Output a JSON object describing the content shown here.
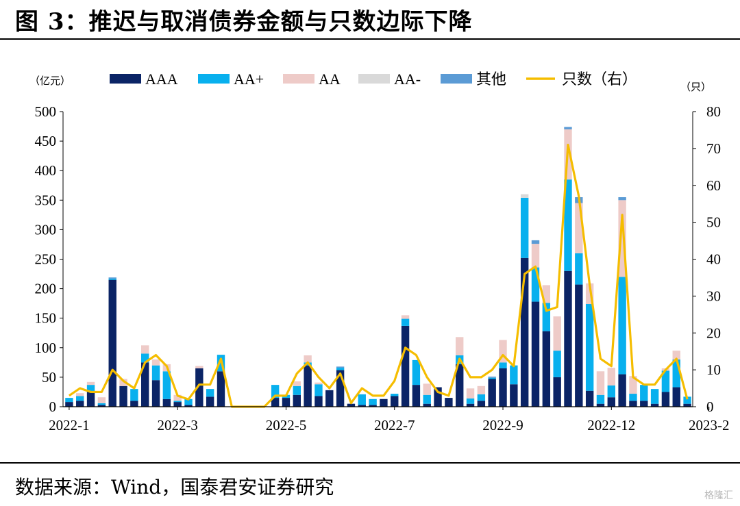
{
  "figure": {
    "title": "图 3：推迟与取消债券金额与只数边际下降",
    "source": "数据来源：Wind，国泰君安证券研究",
    "watermark": "格隆汇"
  },
  "chart_data": {
    "type": "bar",
    "stacked": true,
    "left_unit": "（亿元）",
    "right_unit": "（只）",
    "ylim": [
      0,
      500
    ],
    "yticks": [
      0,
      50,
      100,
      150,
      200,
      250,
      300,
      350,
      400,
      450,
      500
    ],
    "y2lim": [
      0,
      80
    ],
    "y2ticks": [
      0,
      10,
      20,
      30,
      40,
      50,
      60,
      70,
      80
    ],
    "xtick_labels": [
      {
        "index": 0,
        "label": "2022-1"
      },
      {
        "index": 10,
        "label": "2022-3"
      },
      {
        "index": 20,
        "label": "2022-5"
      },
      {
        "index": 30,
        "label": "2022-7"
      },
      {
        "index": 40,
        "label": "2022-9"
      },
      {
        "index": 50,
        "label": "2022-12"
      },
      {
        "index": 59,
        "label": "2023-2"
      }
    ],
    "legend_position": "top",
    "colors": {
      "AAA": "#0b2466",
      "AA+": "#08b0ee",
      "AA": "#eecbc8",
      "AA-": "#d9d9d9",
      "其他": "#5b9bd5",
      "只数（右）": "#f5bd00"
    },
    "series": [
      {
        "name": "AAA",
        "values": [
          8,
          10,
          25,
          3,
          215,
          35,
          10,
          75,
          45,
          13,
          8,
          3,
          65,
          17,
          60,
          0,
          0,
          0,
          0,
          15,
          15,
          20,
          70,
          18,
          28,
          62,
          5,
          3,
          3,
          13,
          18,
          137,
          37,
          5,
          33,
          15,
          72,
          5,
          10,
          47,
          65,
          38,
          252,
          178,
          128,
          50,
          230,
          207,
          27,
          5,
          16,
          55,
          10,
          10,
          5,
          25,
          33,
          5
        ]
      },
      {
        "name": "AA+",
        "values": [
          7,
          8,
          12,
          3,
          2,
          0,
          20,
          15,
          25,
          47,
          2,
          10,
          0,
          13,
          28,
          0,
          0,
          0,
          0,
          22,
          5,
          15,
          5,
          20,
          0,
          4,
          0,
          18,
          10,
          0,
          4,
          12,
          42,
          15,
          0,
          0,
          15,
          9,
          11,
          2,
          10,
          32,
          102,
          58,
          48,
          45,
          155,
          53,
          147,
          15,
          20,
          165,
          12,
          27,
          25,
          36,
          47,
          12
        ]
      },
      {
        "name": "AA",
        "values": [
          0,
          5,
          5,
          10,
          0,
          12,
          0,
          14,
          10,
          12,
          10,
          0,
          4,
          0,
          0,
          0,
          0,
          0,
          0,
          0,
          0,
          8,
          12,
          3,
          0,
          0,
          0,
          0,
          0,
          0,
          0,
          6,
          0,
          19,
          0,
          0,
          31,
          17,
          14,
          0,
          38,
          0,
          0,
          40,
          30,
          58,
          85,
          85,
          35,
          40,
          30,
          130,
          30,
          0,
          0,
          4,
          15,
          0
        ]
      },
      {
        "name": "AA-",
        "values": [
          0,
          0,
          0,
          0,
          0,
          0,
          0,
          0,
          0,
          0,
          0,
          0,
          0,
          0,
          0,
          0,
          0,
          0,
          0,
          0,
          0,
          0,
          0,
          0,
          0,
          0,
          0,
          0,
          0,
          0,
          0,
          0,
          0,
          0,
          0,
          0,
          0,
          0,
          0,
          0,
          0,
          0,
          6,
          0,
          0,
          0,
          0,
          0,
          0,
          0,
          0,
          0,
          0,
          0,
          0,
          0,
          0,
          0
        ]
      },
      {
        "name": "其他",
        "values": [
          0,
          0,
          0,
          0,
          2,
          0,
          0,
          0,
          0,
          0,
          0,
          0,
          0,
          0,
          0,
          0,
          0,
          0,
          0,
          0,
          0,
          0,
          0,
          0,
          0,
          2,
          0,
          0,
          0,
          0,
          0,
          0,
          0,
          0,
          0,
          0,
          0,
          0,
          0,
          2,
          0,
          0,
          0,
          6,
          0,
          0,
          4,
          10,
          0,
          0,
          0,
          5,
          0,
          0,
          0,
          0,
          0,
          0
        ]
      },
      {
        "name": "只数（右）",
        "type": "line",
        "axis": "right",
        "values": [
          3,
          5,
          4,
          4,
          10,
          7,
          5,
          12,
          14,
          11,
          3,
          2,
          6,
          6,
          13,
          0,
          0,
          0,
          0,
          3,
          3,
          9,
          12,
          8,
          5,
          9,
          1,
          5,
          3,
          3,
          7,
          16,
          14,
          8,
          4,
          3,
          13,
          8,
          8,
          10,
          14,
          11,
          36,
          38,
          26,
          27,
          71,
          57,
          33,
          13,
          11,
          52,
          8,
          6,
          6,
          10,
          13,
          2
        ]
      }
    ]
  }
}
